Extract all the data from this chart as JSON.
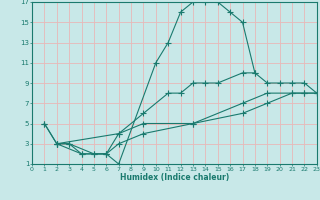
{
  "xlabel": "Humidex (Indice chaleur)",
  "xlim": [
    0,
    23
  ],
  "ylim": [
    1,
    17
  ],
  "xticks": [
    0,
    1,
    2,
    3,
    4,
    5,
    6,
    7,
    8,
    9,
    10,
    11,
    12,
    13,
    14,
    15,
    16,
    17,
    18,
    19,
    20,
    21,
    22,
    23
  ],
  "yticks": [
    1,
    3,
    5,
    7,
    9,
    11,
    13,
    15,
    17
  ],
  "bg_color": "#c8e8e8",
  "line_color": "#1a7a6e",
  "grid_color": "#e8b8b8",
  "line1_x": [
    1,
    2,
    3,
    4,
    5,
    6,
    7,
    10,
    11,
    12,
    13,
    14,
    15,
    16,
    17,
    18
  ],
  "line1_y": [
    5,
    3,
    3,
    2,
    2,
    2,
    1,
    11,
    13,
    16,
    17,
    17,
    17,
    16,
    15,
    10
  ],
  "line2_x": [
    2,
    3,
    5,
    6,
    7,
    9,
    11,
    12,
    13,
    14,
    15,
    17,
    18,
    19,
    20,
    21,
    22,
    23
  ],
  "line2_y": [
    3,
    3,
    2,
    2,
    4,
    6,
    8,
    8,
    9,
    9,
    9,
    10,
    10,
    9,
    9,
    9,
    9,
    8
  ],
  "line3_x": [
    1,
    2,
    7,
    9,
    13,
    17,
    19,
    21,
    22,
    23
  ],
  "line3_y": [
    5,
    3,
    4,
    5,
    5,
    7,
    8,
    8,
    8,
    8
  ],
  "line4_x": [
    2,
    4,
    6,
    7,
    9,
    13,
    17,
    19,
    21,
    22,
    23
  ],
  "line4_y": [
    3,
    2,
    2,
    3,
    4,
    5,
    6,
    7,
    8,
    8,
    8
  ],
  "xticklabels": [
    "0",
    "1",
    "2",
    "3",
    "4",
    "5",
    "6",
    "7",
    "8",
    "9",
    "10",
    "11",
    "12",
    "13",
    "14",
    "15",
    "16",
    "17",
    "18",
    "19",
    "20",
    "21",
    "22",
    "23"
  ]
}
